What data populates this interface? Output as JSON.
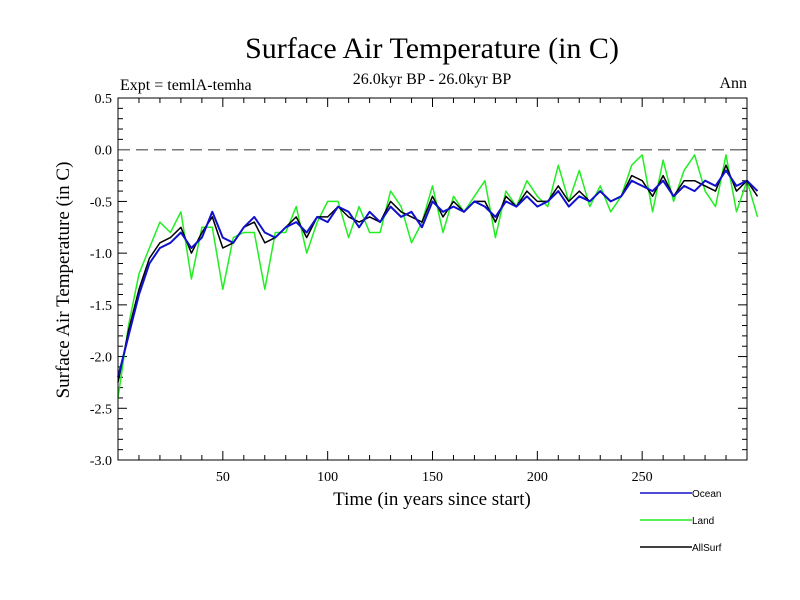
{
  "chart_data": {
    "type": "line",
    "title": "Surface Air Temperature (in C)",
    "subtitle": "26.0kyr BP - 26.0kyr BP",
    "experiment": "Expt = temlA-temha",
    "season": "Ann",
    "xlabel": "Time (in years since start)",
    "ylabel": "Surface Air Temperature (in C)",
    "xlim": [
      0,
      300
    ],
    "ylim": [
      -3.0,
      0.5
    ],
    "xticks": [
      50,
      100,
      150,
      200,
      250
    ],
    "xtick_labels": [
      "50",
      "100",
      "150",
      "200",
      "250"
    ],
    "yticks": [
      0.5,
      0.0,
      -0.5,
      -1.0,
      -1.5,
      -2.0,
      -2.5,
      -3.0
    ],
    "ytick_labels": [
      "0.5",
      "0.0",
      "-0.5",
      "-1.0",
      "-1.5",
      "-2.0",
      "-2.5",
      "-3.0"
    ],
    "reference_line": {
      "y": 0.0,
      "style": "dashed"
    },
    "x_step": 5,
    "series": [
      {
        "name": "Ocean",
        "color": "#1111cc",
        "values": [
          -2.2,
          -1.8,
          -1.4,
          -1.1,
          -0.95,
          -0.9,
          -0.8,
          -0.95,
          -0.85,
          -0.6,
          -0.85,
          -0.9,
          -0.75,
          -0.65,
          -0.8,
          -0.85,
          -0.75,
          -0.7,
          -0.8,
          -0.65,
          -0.7,
          -0.55,
          -0.6,
          -0.75,
          -0.6,
          -0.7,
          -0.55,
          -0.65,
          -0.6,
          -0.75,
          -0.5,
          -0.6,
          -0.55,
          -0.6,
          -0.5,
          -0.55,
          -0.65,
          -0.5,
          -0.55,
          -0.45,
          -0.55,
          -0.5,
          -0.4,
          -0.55,
          -0.45,
          -0.5,
          -0.4,
          -0.5,
          -0.45,
          -0.3,
          -0.35,
          -0.4,
          -0.3,
          -0.45,
          -0.35,
          -0.4,
          -0.3,
          -0.35,
          -0.2,
          -0.35,
          -0.3,
          -0.4
        ]
      },
      {
        "name": "Land",
        "color": "#22ee22",
        "values": [
          -2.4,
          -1.7,
          -1.2,
          -0.95,
          -0.7,
          -0.8,
          -0.6,
          -1.25,
          -0.75,
          -0.75,
          -1.35,
          -0.85,
          -0.8,
          -0.8,
          -1.35,
          -0.8,
          -0.8,
          -0.55,
          -1.0,
          -0.7,
          -0.5,
          -0.5,
          -0.85,
          -0.55,
          -0.8,
          -0.8,
          -0.4,
          -0.55,
          -0.9,
          -0.7,
          -0.35,
          -0.8,
          -0.45,
          -0.6,
          -0.45,
          -0.3,
          -0.85,
          -0.4,
          -0.55,
          -0.3,
          -0.45,
          -0.55,
          -0.15,
          -0.5,
          -0.2,
          -0.55,
          -0.35,
          -0.6,
          -0.45,
          -0.15,
          -0.05,
          -0.6,
          -0.1,
          -0.5,
          -0.2,
          -0.05,
          -0.4,
          -0.55,
          -0.05,
          -0.6,
          -0.3,
          -0.65
        ]
      },
      {
        "name": "AllSurf",
        "color": "#000000",
        "values": [
          -2.25,
          -1.75,
          -1.35,
          -1.05,
          -0.9,
          -0.85,
          -0.75,
          -1.0,
          -0.8,
          -0.65,
          -0.95,
          -0.9,
          -0.75,
          -0.7,
          -0.9,
          -0.85,
          -0.75,
          -0.65,
          -0.85,
          -0.65,
          -0.65,
          -0.55,
          -0.65,
          -0.7,
          -0.65,
          -0.7,
          -0.5,
          -0.6,
          -0.65,
          -0.7,
          -0.45,
          -0.65,
          -0.5,
          -0.6,
          -0.5,
          -0.5,
          -0.7,
          -0.45,
          -0.55,
          -0.4,
          -0.5,
          -0.5,
          -0.35,
          -0.5,
          -0.4,
          -0.5,
          -0.4,
          -0.5,
          -0.45,
          -0.25,
          -0.3,
          -0.45,
          -0.25,
          -0.45,
          -0.3,
          -0.3,
          -0.35,
          -0.4,
          -0.15,
          -0.4,
          -0.3,
          -0.45
        ]
      }
    ],
    "legend_position": "bottom-right"
  }
}
